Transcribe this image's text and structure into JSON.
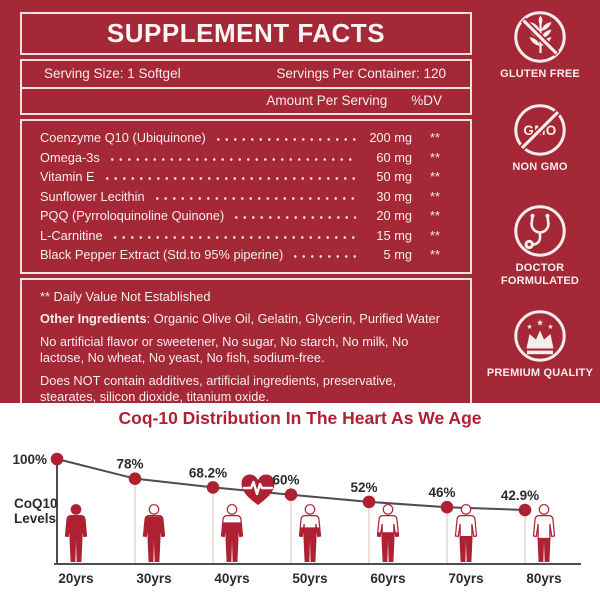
{
  "colors": {
    "label_bg": "#A42836",
    "panel_line": "#F2E3E3",
    "text_light": "#F6EDED",
    "accent_red": "#AE2133",
    "line_gray": "#4D4D4D",
    "label_dark": "#2B2B2B",
    "dropline": "#E4C9CC"
  },
  "panel": {
    "title": "SUPPLEMENT FACTS",
    "serving_size": "Serving Size: 1 Softgel",
    "servings_per_container": "Servings Per Container: 120",
    "amount_header": "Amount Per Serving",
    "dv_header": "%DV",
    "rows": [
      {
        "name": "Coenzyme Q10 (Ubiquinone)",
        "amount": "200 mg",
        "dv": "**"
      },
      {
        "name": "Omega-3s",
        "amount": "60 mg",
        "dv": "**"
      },
      {
        "name": "Vitamin E",
        "amount": "50 mg",
        "dv": "**"
      },
      {
        "name": "Sunflower Lecithin",
        "amount": "30 mg",
        "dv": "**"
      },
      {
        "name": "PQQ (Pyrroloquinoline Quinone)",
        "amount": "20 mg",
        "dv": "**"
      },
      {
        "name": "L-Carnitine",
        "amount": "15 mg",
        "dv": "**"
      },
      {
        "name": "Black Pepper Extract (Std.to 95% piperine)",
        "amount": "5 mg",
        "dv": "**"
      }
    ],
    "footnotes": [
      {
        "bold": "",
        "text": "** Daily Value Not Established"
      },
      {
        "bold": "Other Ingredients",
        "text": ": Organic Olive Oil, Gelatin, Glycerin, Purified Water"
      },
      {
        "bold": "",
        "text": "No artificial flavor or sweetener, No sugar, No starch, No milk, No lactose, No wheat, No yeast, No fish, sodium-free."
      },
      {
        "bold": "",
        "text": "Does NOT contain additives, artificial ingredients, preservative, stearates, silicon dioxide, titanium oxide."
      }
    ]
  },
  "badges": [
    {
      "label": "GLUTEN FREE",
      "icon": "wheat-crossed"
    },
    {
      "label": "NON GMO",
      "icon": "gmo-crossed"
    },
    {
      "label": "DOCTOR FORMULATED",
      "icon": "stethoscope"
    },
    {
      "label": "PREMIUM QUALITY",
      "icon": "crown"
    }
  ],
  "chart_data": {
    "type": "line",
    "title": "Coq-10 Distribution In The Heart As We Age",
    "ylabel": "CoQ10 Levels",
    "xlabel": "",
    "categories": [
      "20yrs",
      "30yrs",
      "40yrs",
      "50yrs",
      "60yrs",
      "70yrs",
      "80yrs"
    ],
    "values": [
      100,
      78,
      68.2,
      60,
      52,
      46,
      42.9
    ],
    "point_labels": [
      "100%",
      "78%",
      "68.2%",
      "60%",
      "52%",
      "46%",
      "42.9%"
    ],
    "ylim": [
      0,
      100
    ],
    "grid": false,
    "legend": false,
    "annotation": "heart-pulse icon on the trend line between 40yrs and 50yrs",
    "figure_fill_percent": [
      100,
      78,
      68.2,
      60,
      52,
      46,
      42.9
    ]
  }
}
